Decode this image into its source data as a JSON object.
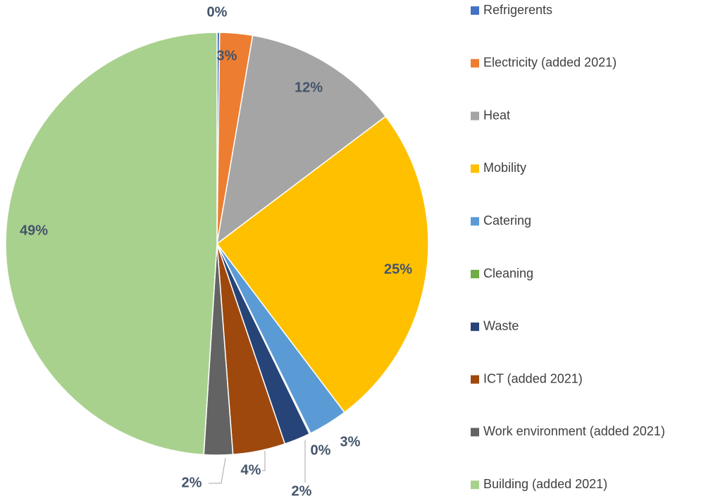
{
  "chart_data": {
    "type": "pie",
    "categories": [
      "Refrigerents",
      "Electricity (added 2021)",
      "Heat",
      "Mobility",
      "Catering",
      "Cleaning",
      "Waste",
      "ICT (added 2021)",
      "Work environment (added 2021)",
      "Building (added 2021)"
    ],
    "values": [
      0.2,
      2.5,
      12,
      25,
      3,
      0.1,
      2,
      4,
      2.2,
      49
    ],
    "value_labels": [
      "0%",
      "3%",
      "12%",
      "25%",
      "3%",
      "0%",
      "2%",
      "4%",
      "2%",
      "49%"
    ],
    "colors": [
      "#4472c4",
      "#ed7d31",
      "#a5a5a5",
      "#ffc000",
      "#5b9bd5",
      "#70ad47",
      "#264478",
      "#9e480e",
      "#636363",
      "#a9d18e"
    ]
  }
}
